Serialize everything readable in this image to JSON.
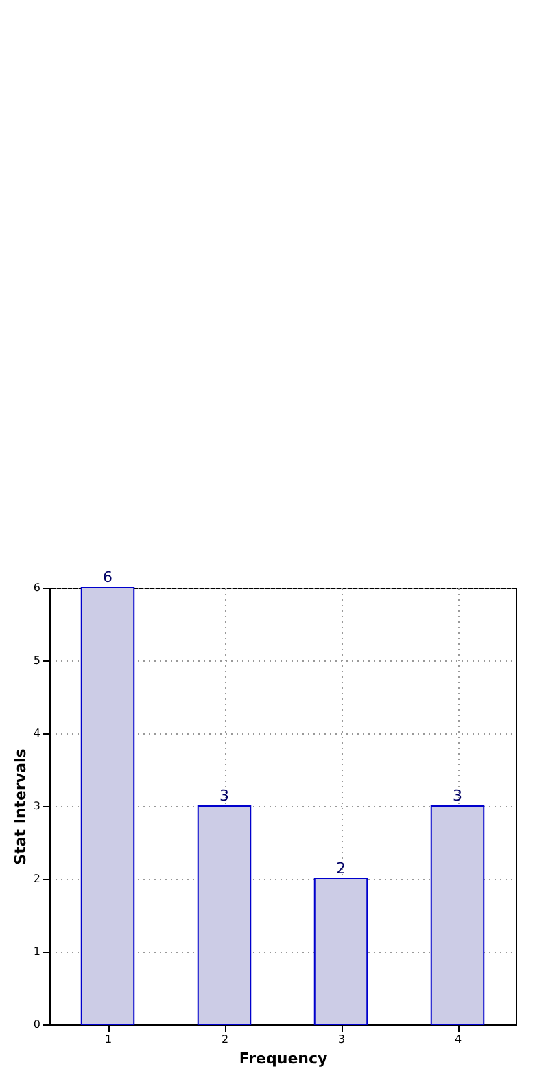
{
  "chart_data": {
    "type": "bar",
    "xlabel": "Frequency",
    "ylabel": "Stat Intervals",
    "x": [
      1,
      2,
      3,
      4
    ],
    "values": [
      6,
      3,
      2,
      3
    ],
    "color": "#ccccE6",
    "xlim": [
      0.5,
      4.5
    ],
    "xticks": [
      1,
      2,
      3,
      4
    ],
    "ylim": [
      0,
      6
    ],
    "yticks": [
      0,
      1,
      2,
      3,
      4,
      5,
      6
    ],
    "grid": true,
    "data_labels": true
  }
}
